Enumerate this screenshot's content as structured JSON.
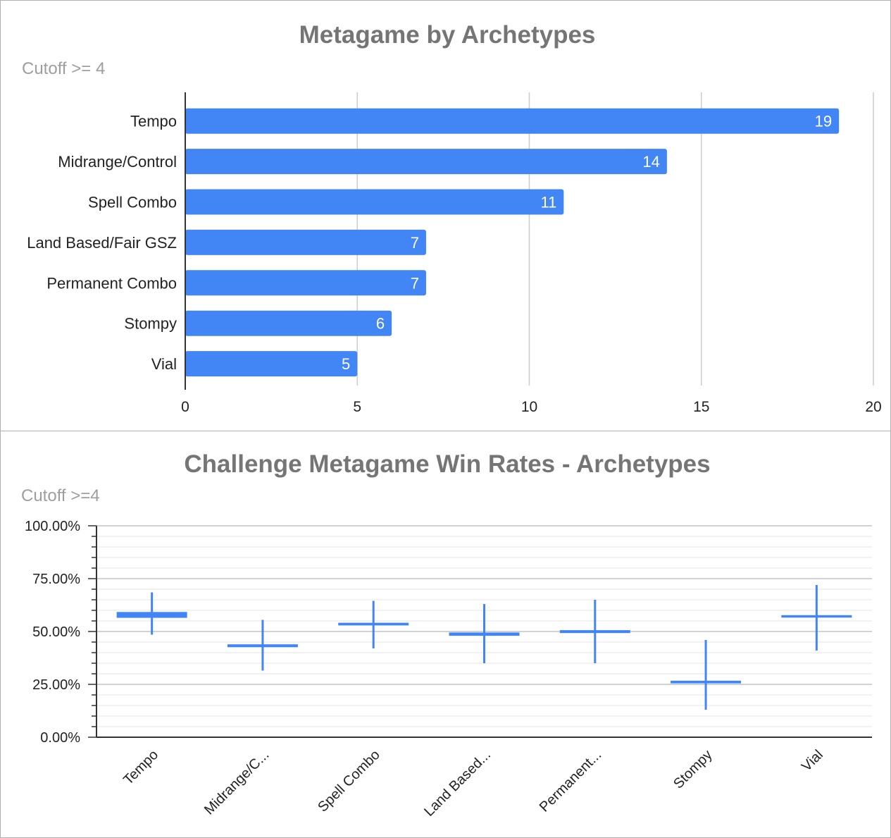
{
  "chart_data": [
    {
      "type": "bar",
      "orientation": "horizontal",
      "title": "Metagame by Archetypes",
      "subtitle": "Cutoff >= 4",
      "categories": [
        "Tempo",
        "Midrange/Control",
        "Spell Combo",
        "Land Based/Fair GSZ",
        "Permanent Combo",
        "Stompy",
        "Vial"
      ],
      "values": [
        19,
        14,
        11,
        7,
        7,
        6,
        5
      ],
      "xlim": [
        0,
        20
      ],
      "xticks": [
        0,
        5,
        10,
        15,
        20
      ],
      "grid": true,
      "data_labels": true,
      "color": "#4285f4"
    },
    {
      "type": "candlestick",
      "title": "Challenge Metagame Win Rates - Archetypes",
      "subtitle": "Cutoff >=4",
      "categories": [
        "Tempo",
        "Midrange/C...",
        "Spell Combo",
        "Land Based...",
        "Permanent...",
        "Stompy",
        "Vial"
      ],
      "series": [
        {
          "low": [
            48.5,
            31.5,
            42,
            35,
            35,
            13,
            41
          ],
          "open": [
            56.8,
            42.9,
            53.2,
            48.3,
            49.6,
            25.8,
            56.9
          ],
          "close": [
            58.9,
            43.6,
            53.8,
            49.2,
            50.3,
            26.4,
            57.4
          ],
          "high": [
            68.5,
            55.5,
            64.5,
            63,
            65,
            46,
            72
          ]
        }
      ],
      "ylim": [
        0,
        100
      ],
      "yticks": [
        "0.00%",
        "25.00%",
        "50.00%",
        "75.00%",
        "100.00%"
      ],
      "grid": true,
      "color": "#4285f4"
    }
  ]
}
